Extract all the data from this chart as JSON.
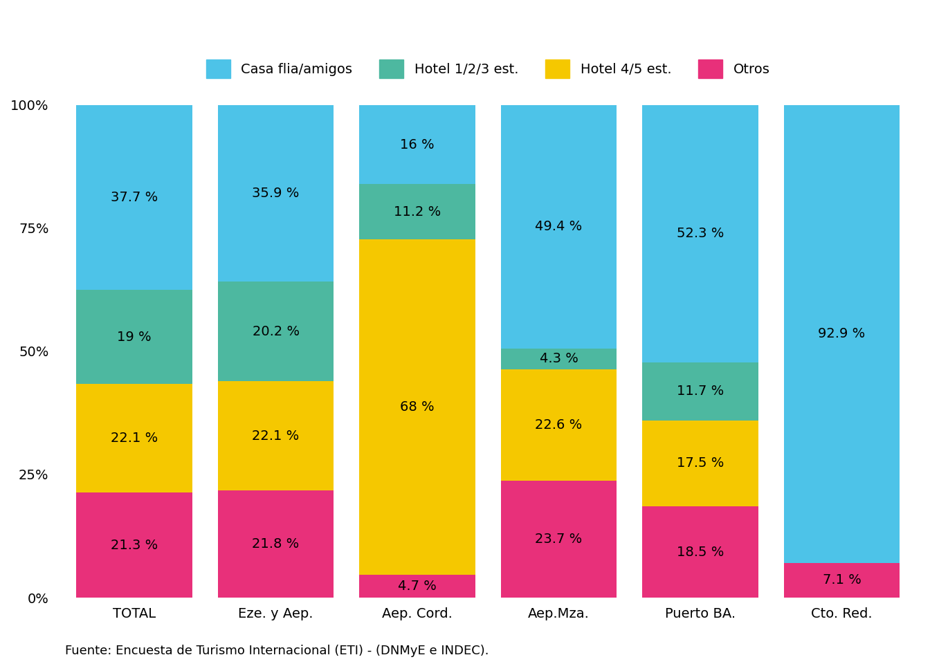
{
  "categories": [
    "TOTAL",
    "Eze. y Aep.",
    "Aep. Cord.",
    "Aep.Mza.",
    "Puerto BA.",
    "Cto. Red."
  ],
  "series": {
    "Otros": [
      21.3,
      21.8,
      4.7,
      23.7,
      18.5,
      7.1
    ],
    "Hotel 4/5 est.": [
      22.1,
      22.1,
      68.0,
      22.6,
      17.5,
      0.0
    ],
    "Hotel 1/2/3 est.": [
      19.0,
      20.2,
      11.2,
      4.3,
      11.7,
      0.0
    ],
    "Casa flia/amigos": [
      37.7,
      35.9,
      16.0,
      49.4,
      52.3,
      92.9
    ]
  },
  "colors": {
    "Casa flia/amigos": "#4DC3E8",
    "Hotel 1/2/3 est.": "#4DB8A0",
    "Hotel 4/5 est.": "#F5C800",
    "Otros": "#E8307A"
  },
  "labels": {
    "Otros": [
      "21.3 %",
      "21.8 %",
      "4.7 %",
      "23.7 %",
      "18.5 %",
      "7.1 %"
    ],
    "Hotel 4/5 est.": [
      "22.1 %",
      "22.1 %",
      "68 %",
      "22.6 %",
      "17.5 %",
      ""
    ],
    "Hotel 1/2/3 est.": [
      "19 %",
      "20.2 %",
      "11.2 %",
      "4.3 %",
      "11.7 %",
      ""
    ],
    "Casa flia/amigos": [
      "37.7 %",
      "35.9 %",
      "16 %",
      "49.4 %",
      "52.3 %",
      "92.9 %"
    ]
  },
  "yticks": [
    0,
    25,
    50,
    75,
    100
  ],
  "ytick_labels": [
    "0%",
    "25%",
    "50%",
    "75%",
    "100%"
  ],
  "legend_order": [
    "Casa flia/amigos",
    "Hotel 1/2/3 est.",
    "Hotel 4/5 est.",
    "Otros"
  ],
  "source_text": "Fuente: Encuesta de Turismo Internacional (ETI) - (DNMyE e INDEC).",
  "background_color": "#FFFFFF",
  "plot_background": "#FFFFFF",
  "bar_width": 0.82,
  "fontsize_labels": 14,
  "fontsize_ticks": 14,
  "fontsize_legend": 14,
  "fontsize_source": 13
}
